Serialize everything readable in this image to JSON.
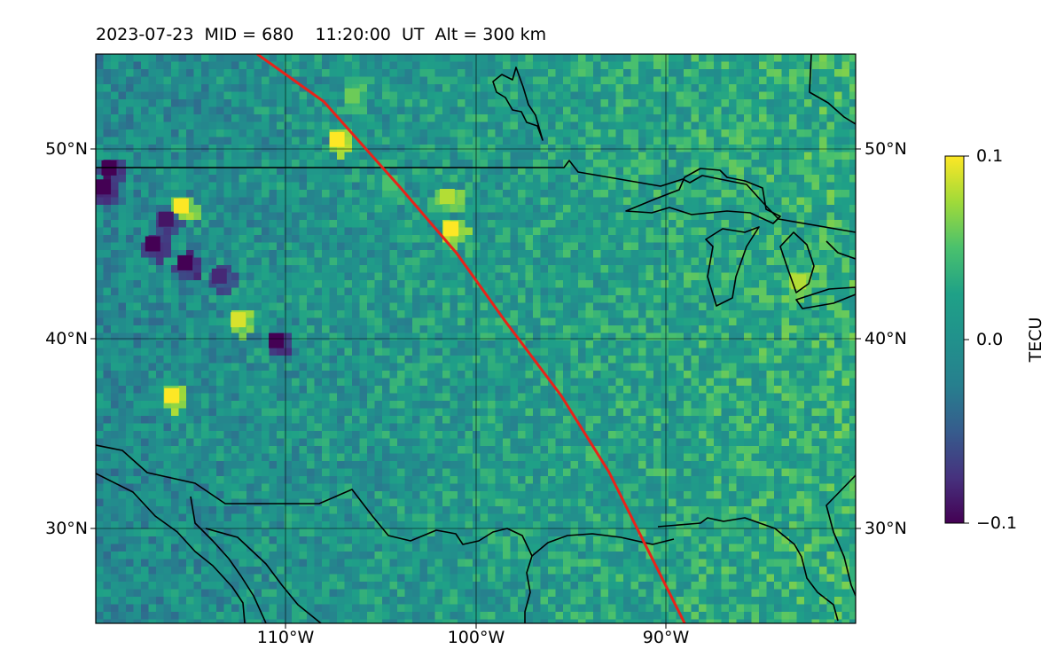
{
  "title": "2023-07-23  MID = 680    11:20:00  UT  Alt = 300 km",
  "colorbar": {
    "label": "TECU",
    "min": -0.1,
    "max": 0.1,
    "ticks": [
      "0.1",
      "0.0",
      "−0.1"
    ],
    "colormap": "viridis"
  },
  "map": {
    "projection": "equirectangular",
    "lon_range": [
      -120,
      -80
    ],
    "lat_range": [
      25,
      55
    ],
    "lat_ticks": [
      "50°N",
      "40°N",
      "30°N"
    ],
    "lon_ticks": [
      "110°W",
      "100°W",
      "90°W"
    ],
    "grid": true,
    "terminator_color": "#e8231a",
    "coastline_color": "#000000"
  },
  "chart_data": {
    "type": "heatmap",
    "title": "2023-07-23  MID = 680    11:20:00  UT  Alt = 300 km",
    "xlabel": "",
    "ylabel": "",
    "xlim": [
      -120,
      -80
    ],
    "ylim": [
      25,
      55
    ],
    "value_range": [
      -0.1,
      0.1
    ],
    "terminator_line": [
      [
        -111.5,
        55
      ],
      [
        -108,
        52.5
      ],
      [
        -104,
        48
      ],
      [
        -101,
        44.5
      ],
      [
        -98.5,
        41
      ],
      [
        -95.5,
        37
      ],
      [
        -93,
        33
      ],
      [
        -91,
        29
      ],
      [
        -89,
        25
      ]
    ],
    "hotspots": [
      {
        "lon": -107.3,
        "lat": 50.5,
        "value": 0.1
      },
      {
        "lon": -115.5,
        "lat": 47.0,
        "value": 0.1
      },
      {
        "lon": -112.5,
        "lat": 41.0,
        "value": 0.09
      },
      {
        "lon": -116.0,
        "lat": 37.0,
        "value": 0.1
      },
      {
        "lon": -101.5,
        "lat": 47.5,
        "value": 0.08
      },
      {
        "lon": -101.3,
        "lat": 45.8,
        "value": 0.1
      },
      {
        "lon": -83.0,
        "lat": 43.0,
        "value": 0.08
      },
      {
        "lon": -106.5,
        "lat": 52.8,
        "value": 0.06
      },
      {
        "lon": -104.5,
        "lat": 48.2,
        "value": 0.05
      },
      {
        "lon": -117.0,
        "lat": 45.0,
        "value": -0.1
      },
      {
        "lon": -115.3,
        "lat": 44.0,
        "value": -0.1
      },
      {
        "lon": -119.6,
        "lat": 48.0,
        "value": -0.1
      },
      {
        "lon": -119.3,
        "lat": 49.0,
        "value": -0.1
      },
      {
        "lon": -116.3,
        "lat": 46.3,
        "value": -0.09
      },
      {
        "lon": -110.5,
        "lat": 39.9,
        "value": -0.1
      },
      {
        "lon": -113.5,
        "lat": 43.3,
        "value": -0.08
      }
    ]
  }
}
